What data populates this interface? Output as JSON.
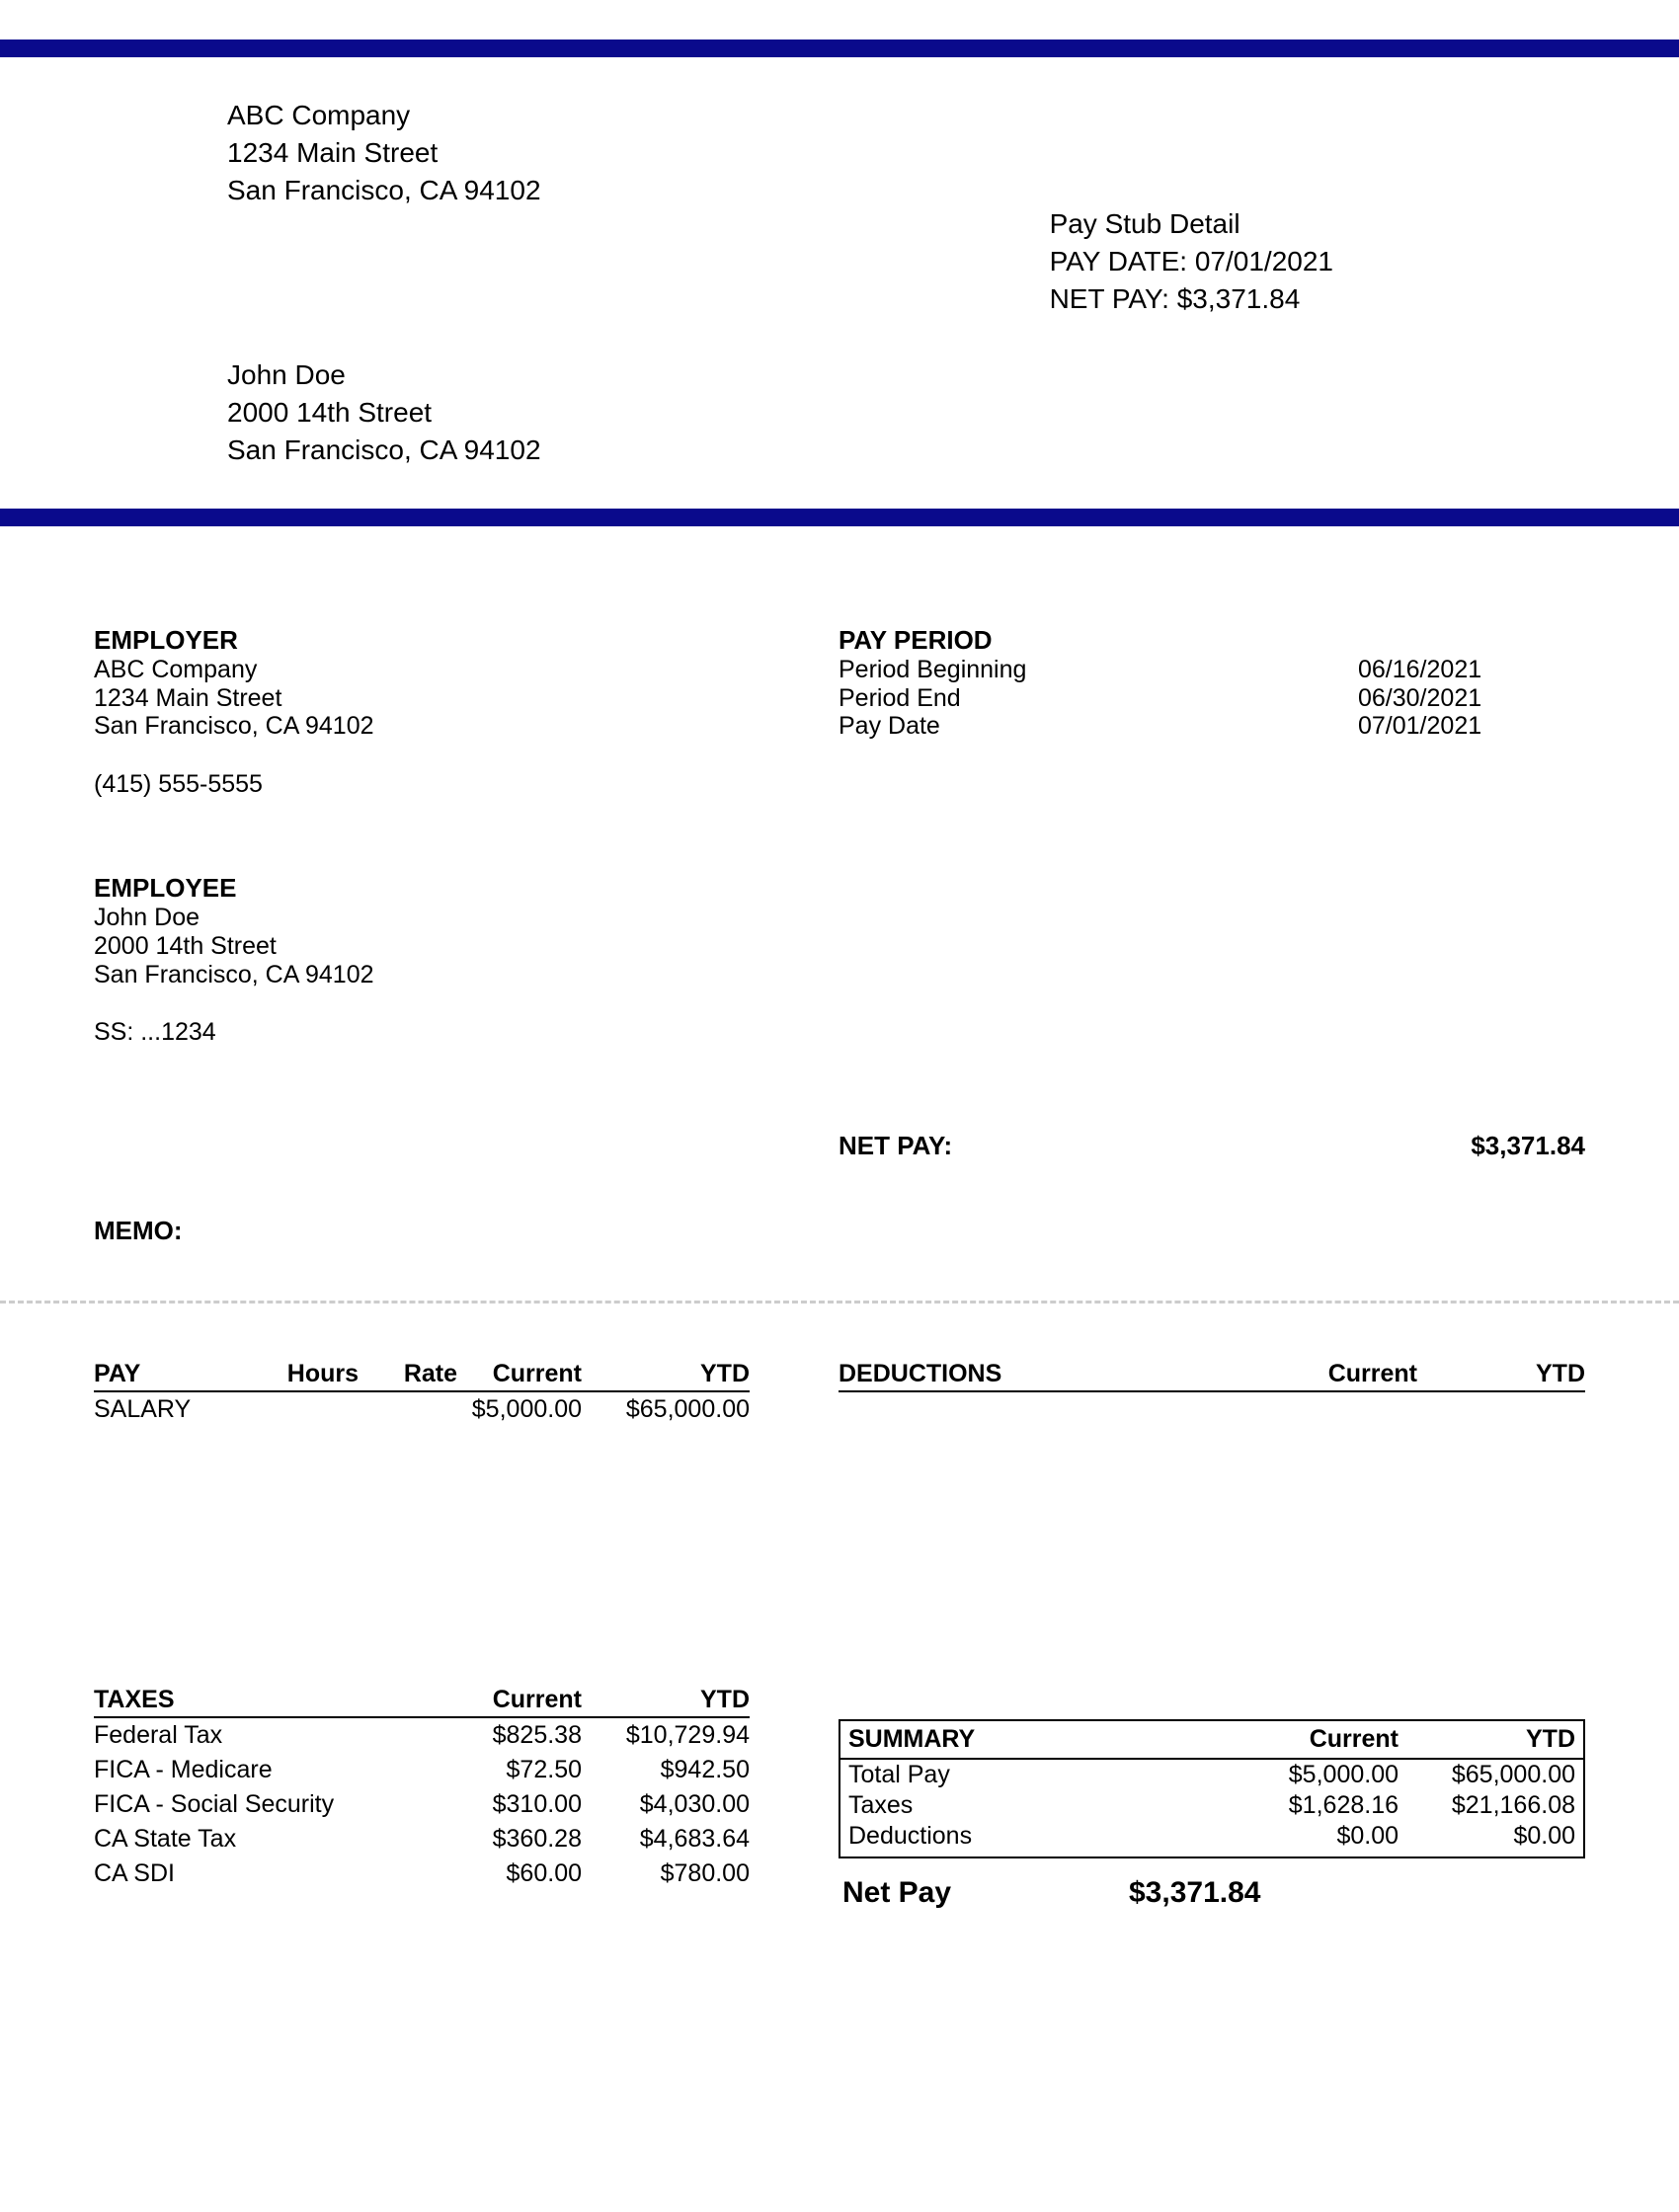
{
  "accent_color": "#0a0a8c",
  "company": {
    "name": "ABC Company",
    "street": "1234 Main Street",
    "city_state_zip": "San Francisco, CA 94102",
    "phone": "(415) 555-5555"
  },
  "stub_header": {
    "title": "Pay Stub Detail",
    "pay_date_line": "PAY DATE: 07/01/2021",
    "net_pay_line": "NET PAY: $3,371.84"
  },
  "employee": {
    "name": "John Doe",
    "street": "2000 14th Street",
    "city_state_zip": "San Francisco, CA 94102",
    "ss_line": "SS: ...1234"
  },
  "labels": {
    "employer": "EMPLOYER",
    "employee": "EMPLOYEE",
    "pay_period": "PAY PERIOD",
    "period_begin": "Period Beginning",
    "period_end": "Period End",
    "pay_date": "Pay Date",
    "net_pay": "NET PAY:",
    "memo": "MEMO:",
    "pay": "PAY",
    "hours": "Hours",
    "rate": "Rate",
    "current": "Current",
    "ytd": "YTD",
    "deductions": "DEDUCTIONS",
    "taxes": "TAXES",
    "summary": "SUMMARY",
    "total_pay": "Total Pay",
    "taxes_row": "Taxes",
    "deductions_row": "Deductions",
    "net_pay_final": "Net Pay"
  },
  "pay_period": {
    "begin": "06/16/2021",
    "end": "06/30/2021",
    "pay_date": "07/01/2021"
  },
  "net_pay_value": "$3,371.84",
  "pay_rows": [
    {
      "label": "SALARY",
      "hours": "",
      "rate": "",
      "current": "$5,000.00",
      "ytd": "$65,000.00"
    }
  ],
  "tax_rows": [
    {
      "label": "Federal Tax",
      "current": "$825.38",
      "ytd": "$10,729.94"
    },
    {
      "label": "FICA - Medicare",
      "current": "$72.50",
      "ytd": "$942.50"
    },
    {
      "label": "FICA - Social Security",
      "current": "$310.00",
      "ytd": "$4,030.00"
    },
    {
      "label": "CA State Tax",
      "current": "$360.28",
      "ytd": "$4,683.64"
    },
    {
      "label": "CA SDI",
      "current": "$60.00",
      "ytd": "$780.00"
    }
  ],
  "summary": {
    "total_pay": {
      "current": "$5,000.00",
      "ytd": "$65,000.00"
    },
    "taxes": {
      "current": "$1,628.16",
      "ytd": "$21,166.08"
    },
    "deductions": {
      "current": "$0.00",
      "ytd": "$0.00"
    }
  }
}
